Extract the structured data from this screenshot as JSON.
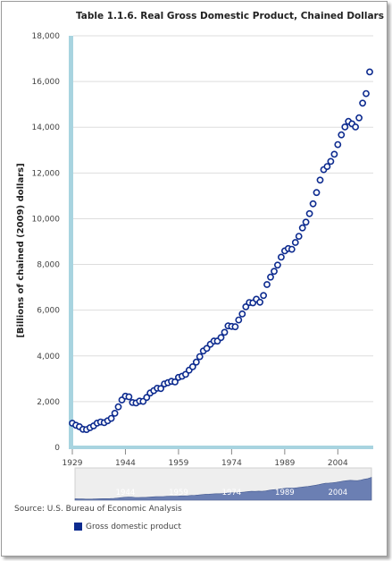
{
  "chart_data": {
    "type": "scatter",
    "title": "Table 1.1.6. Real Gross Domestic Product, Chained Dollars",
    "ylabel": "[Billions of chained (2009) dollars]",
    "xlabel": "",
    "ylim": [
      0,
      18000
    ],
    "xlim": [
      1929,
      2013
    ],
    "yticks": [
      "0",
      "2,000",
      "4,000",
      "6,000",
      "8,000",
      "10,000",
      "12,000",
      "14,000",
      "16,000",
      "18,000"
    ],
    "xticks": [
      "1929",
      "1944",
      "1959",
      "1974",
      "1989",
      "2004"
    ],
    "navigator_ticks": [
      "1944",
      "1959",
      "1974",
      "1989",
      "2004"
    ],
    "grid": true,
    "legend_position": "bottom-left",
    "series": [
      {
        "name": "Gross domestic product",
        "color": "#0d2b8f",
        "x": [
          1929,
          1930,
          1931,
          1932,
          1933,
          1934,
          1935,
          1936,
          1937,
          1938,
          1939,
          1940,
          1941,
          1942,
          1943,
          1944,
          1945,
          1946,
          1947,
          1948,
          1949,
          1950,
          1951,
          1952,
          1953,
          1954,
          1955,
          1956,
          1957,
          1958,
          1959,
          1960,
          1961,
          1962,
          1963,
          1964,
          1965,
          1966,
          1967,
          1968,
          1969,
          1970,
          1971,
          1972,
          1973,
          1974,
          1975,
          1976,
          1977,
          1978,
          1979,
          1980,
          1981,
          1982,
          1983,
          1984,
          1985,
          1986,
          1987,
          1988,
          1989,
          1990,
          1991,
          1992,
          1993,
          1994,
          1995,
          1996,
          1997,
          1998,
          1999,
          2000,
          2001,
          2002,
          2003,
          2004,
          2005,
          2006,
          2007,
          2008,
          2009,
          2010,
          2011,
          2012,
          2013
        ],
        "y": [
          1057,
          967,
          905,
          791,
          778,
          862,
          939,
          1060,
          1113,
          1081,
          1163,
          1267,
          1490,
          1772,
          2073,
          2240,
          2211,
          1960,
          1940,
          2024,
          2013,
          2182,
          2378,
          2479,
          2588,
          2570,
          2776,
          2831,
          2888,
          2862,
          3059,
          3112,
          3194,
          3377,
          3527,
          3731,
          3968,
          4216,
          4327,
          4507,
          4648,
          4649,
          4802,
          5034,
          5314,
          5290,
          5273,
          5571,
          5835,
          6148,
          6337,
          6321,
          6479,
          6348,
          6642,
          7122,
          7447,
          7697,
          7972,
          8319,
          8594,
          8696,
          8664,
          8959,
          9229,
          9597,
          9848,
          10222,
          10652,
          11146,
          11689,
          12148,
          12285,
          12507,
          12819,
          13242,
          13669,
          14012,
          14256,
          14151,
          14012,
          14412,
          15053,
          15471,
          16420
        ]
      }
    ]
  },
  "source": "Source: U.S. Bureau of Economic Analysis",
  "legend_label": "Gross domestic product",
  "colors": {
    "series": "#0d2b8f",
    "axis_band": "#a8d4e0",
    "navigator_fill": "#6b7fb3"
  }
}
